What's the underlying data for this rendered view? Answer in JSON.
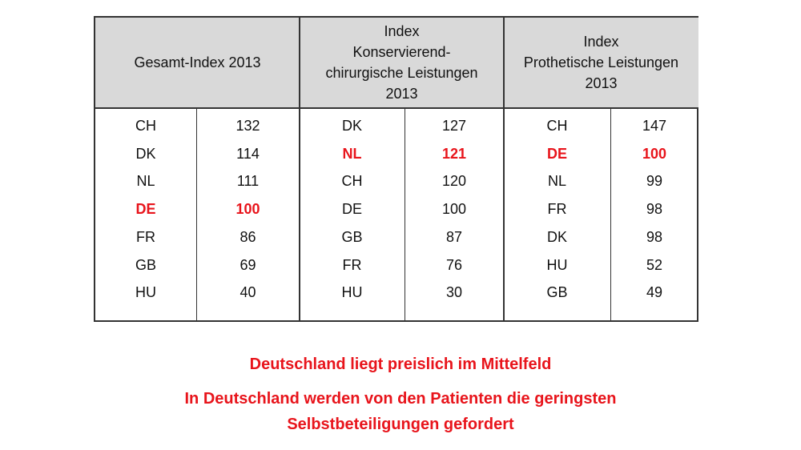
{
  "table": {
    "highlight_color": "#e8141b",
    "highlight_rows": [
      3,
      1,
      1
    ],
    "groups": [
      {
        "header": [
          "Gesamt-Index 2013"
        ],
        "rows": [
          [
            "CH",
            132
          ],
          [
            "DK",
            114
          ],
          [
            "NL",
            111
          ],
          [
            "DE",
            100
          ],
          [
            "FR",
            86
          ],
          [
            "GB",
            69
          ],
          [
            "HU",
            40
          ]
        ]
      },
      {
        "header": [
          "Index",
          "Konservierend-",
          "chirurgische Leistungen",
          "2013"
        ],
        "rows": [
          [
            "DK",
            127
          ],
          [
            "NL",
            121
          ],
          [
            "CH",
            120
          ],
          [
            "DE",
            100
          ],
          [
            "GB",
            87
          ],
          [
            "FR",
            76
          ],
          [
            "HU",
            30
          ]
        ]
      },
      {
        "header": [
          "Index",
          "Prothetische Leistungen",
          "2013"
        ],
        "rows": [
          [
            "CH",
            147
          ],
          [
            "DE",
            100
          ],
          [
            "NL",
            99
          ],
          [
            "FR",
            98
          ],
          [
            "DK",
            98
          ],
          [
            "HU",
            52
          ],
          [
            "GB",
            49
          ]
        ]
      }
    ]
  },
  "footer": [
    "Deutschland liegt preislich im Mittelfeld",
    "In Deutschland werden von den Patienten die geringsten",
    "Selbstbeteiligungen gefordert"
  ]
}
